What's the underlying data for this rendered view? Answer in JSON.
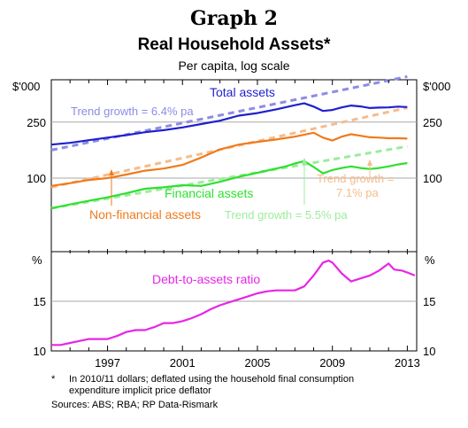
{
  "header": {
    "graph_label": "Graph 2",
    "title": "Real Household Assets*",
    "subtitle": "Per capita, log scale"
  },
  "footnotes": {
    "note_marker": "*",
    "note_line1": "In 2010/11 dollars; deflated using the household final consumption",
    "note_line2": "expenditure implicit price deflator",
    "sources": "Sources: ABS; RBA; RP Data-Rismark"
  },
  "colors": {
    "total": "#1f1fd0",
    "total_trend": "#8c8ce6",
    "financial": "#2ee02e",
    "financial_trend": "#9cec9c",
    "nonfinancial": "#f07a1a",
    "nonfinancial_trend": "#f5bc8c",
    "debt_ratio": "#e626e6",
    "grid": "#a8a8a8"
  },
  "chart_data": [
    {
      "type": "line",
      "panel": "top",
      "scale": "log",
      "unit_left": "$'000",
      "unit_right": "$'000",
      "ylim": [
        30,
        500
      ],
      "yticks": [
        100,
        250
      ],
      "xlim": [
        1994,
        2013.5
      ],
      "grid": "horizontal",
      "series": [
        {
          "name": "Total assets",
          "color_key": "total",
          "points": [
            [
              1994,
              173
            ],
            [
              1995,
              178
            ],
            [
              1996,
              186
            ],
            [
              1997,
              194
            ],
            [
              1998,
              202
            ],
            [
              1999,
              212
            ],
            [
              2000,
              219
            ],
            [
              2001,
              229
            ],
            [
              2002,
              242
            ],
            [
              2003,
              256
            ],
            [
              2004,
              278
            ],
            [
              2005,
              290
            ],
            [
              2006,
              308
            ],
            [
              2007,
              330
            ],
            [
              2007.5,
              340
            ],
            [
              2008,
              322
            ],
            [
              2008.5,
              300
            ],
            [
              2009,
              305
            ],
            [
              2009.5,
              318
            ],
            [
              2010,
              328
            ],
            [
              2010.5,
              323
            ],
            [
              2011,
              315
            ],
            [
              2011.5,
              317
            ],
            [
              2012,
              318
            ],
            [
              2012.5,
              322
            ],
            [
              2013,
              320
            ]
          ]
        },
        {
          "name": "Non-financial assets",
          "color_key": "nonfinancial",
          "points": [
            [
              1994,
              88
            ],
            [
              1995,
              92
            ],
            [
              1996,
              97
            ],
            [
              1997,
              100
            ],
            [
              1998,
              106
            ],
            [
              1999,
              113
            ],
            [
              2000,
              117
            ],
            [
              2001,
              124
            ],
            [
              2002,
              140
            ],
            [
              2003,
              160
            ],
            [
              2004,
              173
            ],
            [
              2005,
              181
            ],
            [
              2006,
              188
            ],
            [
              2007,
              197
            ],
            [
              2008,
              210
            ],
            [
              2008.5,
              194
            ],
            [
              2009,
              185
            ],
            [
              2009.5,
              197
            ],
            [
              2010,
              205
            ],
            [
              2010.5,
              200
            ],
            [
              2011,
              195
            ],
            [
              2011.5,
              194
            ],
            [
              2012,
              192
            ],
            [
              2012.5,
              192
            ],
            [
              2013,
              191
            ]
          ]
        },
        {
          "name": "Financial assets",
          "color_key": "financial",
          "points": [
            [
              1994,
              61
            ],
            [
              1995,
              65
            ],
            [
              1996,
              69
            ],
            [
              1997,
              73
            ],
            [
              1998,
              78
            ],
            [
              1999,
              84
            ],
            [
              2000,
              86
            ],
            [
              2001,
              89
            ],
            [
              2002,
              88
            ],
            [
              2003,
              94
            ],
            [
              2004,
              102
            ],
            [
              2005,
              109
            ],
            [
              2006,
              117
            ],
            [
              2006.5,
              121
            ],
            [
              2007,
              127
            ],
            [
              2007.5,
              132
            ],
            [
              2008,
              120
            ],
            [
              2008.5,
              108
            ],
            [
              2009,
              114
            ],
            [
              2009.5,
              118
            ],
            [
              2010,
              121
            ],
            [
              2010.5,
              118
            ],
            [
              2011,
              116
            ],
            [
              2011.5,
              118
            ],
            [
              2012,
              121
            ],
            [
              2012.5,
              125
            ],
            [
              2013,
              128
            ]
          ]
        },
        {
          "name": "Total assets trend",
          "color_key": "total_trend",
          "dashed": true,
          "points": [
            [
              1994,
              158
            ],
            [
              2013,
              527
            ]
          ]
        },
        {
          "name": "Non-financial assets trend",
          "color_key": "nonfinancial_trend",
          "dashed": true,
          "points": [
            [
              1994,
              86
            ],
            [
              2013,
              316
            ]
          ]
        },
        {
          "name": "Financial assets trend",
          "color_key": "financial_trend",
          "dashed": true,
          "points": [
            [
              1994,
              61
            ],
            [
              2013,
              168
            ]
          ]
        }
      ],
      "annotations": {
        "total_label": "Total assets",
        "total_trend_label": "Trend growth = 6.4% pa",
        "nonfinancial_label": "Non-financial assets",
        "nonfinancial_trend_line1": "Trend growth =",
        "nonfinancial_trend_line2": "7.1% pa",
        "financial_label": "Financial assets",
        "financial_trend_label": "Trend growth = 5.5% pa"
      }
    },
    {
      "type": "line",
      "panel": "bottom",
      "unit_left": "%",
      "unit_right": "%",
      "ylim": [
        10,
        20
      ],
      "yticks": [
        10,
        15
      ],
      "xlim": [
        1994,
        2013.5
      ],
      "xticks": [
        1997,
        2001,
        2005,
        2009,
        2013
      ],
      "grid": "horizontal",
      "series": [
        {
          "name": "Debt-to-assets ratio",
          "color_key": "debt_ratio",
          "points": [
            [
              1994,
              10.6
            ],
            [
              1994.5,
              10.6
            ],
            [
              1995,
              10.8
            ],
            [
              1995.5,
              11.0
            ],
            [
              1996,
              11.2
            ],
            [
              1996.5,
              11.2
            ],
            [
              1997,
              11.2
            ],
            [
              1997.5,
              11.5
            ],
            [
              1998,
              11.9
            ],
            [
              1998.5,
              12.1
            ],
            [
              1999,
              12.1
            ],
            [
              1999.5,
              12.4
            ],
            [
              2000,
              12.8
            ],
            [
              2000.5,
              12.8
            ],
            [
              2001,
              13.0
            ],
            [
              2001.5,
              13.3
            ],
            [
              2002,
              13.7
            ],
            [
              2002.5,
              14.2
            ],
            [
              2003,
              14.6
            ],
            [
              2003.5,
              14.9
            ],
            [
              2004,
              15.2
            ],
            [
              2004.5,
              15.5
            ],
            [
              2005,
              15.8
            ],
            [
              2005.5,
              16.0
            ],
            [
              2006,
              16.1
            ],
            [
              2006.5,
              16.1
            ],
            [
              2007,
              16.1
            ],
            [
              2007.5,
              16.5
            ],
            [
              2008,
              17.6
            ],
            [
              2008.5,
              18.9
            ],
            [
              2008.8,
              19.1
            ],
            [
              2009,
              18.9
            ],
            [
              2009.5,
              17.8
            ],
            [
              2010,
              17.0
            ],
            [
              2010.5,
              17.3
            ],
            [
              2011,
              17.6
            ],
            [
              2011.5,
              18.1
            ],
            [
              2012,
              18.8
            ],
            [
              2012.3,
              18.2
            ],
            [
              2012.7,
              18.1
            ],
            [
              2013,
              17.9
            ],
            [
              2013.4,
              17.6
            ]
          ]
        }
      ],
      "annotations": {
        "ratio_label": "Debt-to-assets ratio"
      }
    }
  ]
}
